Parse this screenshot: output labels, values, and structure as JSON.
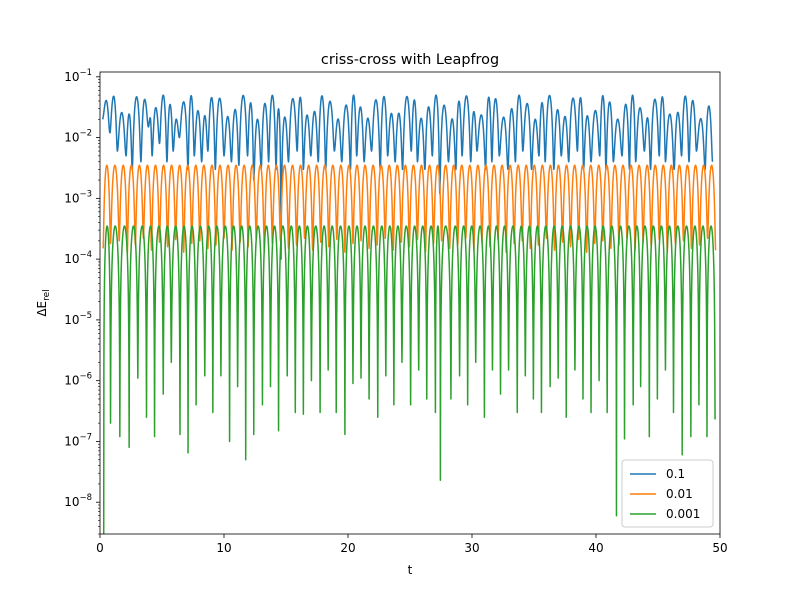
{
  "chart_data": {
    "type": "line",
    "title": "criss-cross with Leapfrog",
    "xlabel": "t",
    "ylabel": "ΔE",
    "ylabel_sub": "rel",
    "xlim": [
      0,
      50
    ],
    "ylim": [
      3e-09,
      0.12
    ],
    "yscale": "log",
    "grid": false,
    "legend_position": "lower-right",
    "x_ticks": [
      0,
      10,
      20,
      30,
      40,
      50
    ],
    "x_tick_labels": [
      "0",
      "10",
      "20",
      "30",
      "40",
      "50"
    ],
    "y_ticks": [
      1e-08,
      1e-07,
      1e-06,
      1e-05,
      0.0001,
      0.001,
      0.01,
      0.1
    ],
    "y_tick_mantissa": [
      "10",
      "10",
      "10",
      "10",
      "10",
      "10",
      "10",
      "10"
    ],
    "y_tick_exponents": [
      "−8",
      "−7",
      "−6",
      "−5",
      "−4",
      "−3",
      "−2",
      "−1"
    ],
    "series": [
      {
        "name": "0.1",
        "color": "#1f77b4",
        "envelope_range": [
          0.02,
          0.05
        ],
        "dip_times": [
          0.2,
          0.8,
          1.4,
          2.1,
          2.6,
          3.3,
          3.9,
          4.2,
          4.8,
          5.4,
          5.9,
          6.4,
          7.1,
          7.6,
          8.2,
          8.7,
          9.3,
          10.0,
          10.6,
          11.2,
          11.9,
          12.4,
          13.0,
          13.6,
          14.2,
          14.6,
          15.2,
          15.9,
          16.4,
          17.0,
          17.6,
          18.2,
          18.9,
          19.5,
          20.2,
          20.7,
          21.3,
          21.9,
          22.6,
          23.2,
          23.8,
          24.4,
          25.1,
          25.6,
          26.2,
          26.8,
          27.4,
          28.1,
          28.7,
          29.2,
          29.9,
          30.4,
          31.1,
          31.6,
          32.2,
          32.9,
          33.5,
          34.1,
          34.8,
          35.4,
          35.9,
          36.6,
          37.2,
          37.8,
          38.5,
          39.0,
          39.6,
          40.3,
          40.8,
          41.4,
          42.1,
          42.7,
          43.2,
          43.9,
          44.4,
          45.1,
          45.6,
          46.3,
          46.9,
          47.5,
          48.1,
          48.8,
          49.4
        ],
        "dip_values": [
          0.02,
          0.012,
          0.006,
          0.005,
          0.003,
          0.004,
          0.015,
          0.005,
          0.008,
          0.004,
          0.006,
          0.01,
          0.003,
          0.005,
          0.004,
          0.006,
          0.003,
          0.005,
          0.004,
          0.0035,
          0.005,
          0.002,
          0.003,
          0.004,
          0.003,
          0.0001,
          0.004,
          0.006,
          0.003,
          0.005,
          0.004,
          0.003,
          0.006,
          0.004,
          0.003,
          0.005,
          0.004,
          0.006,
          0.003,
          0.005,
          0.004,
          0.003,
          0.006,
          0.004,
          0.003,
          0.005,
          0.0012,
          0.004,
          0.003,
          0.005,
          0.004,
          0.006,
          0.003,
          0.004,
          0.005,
          0.003,
          0.004,
          0.006,
          0.003,
          0.005,
          0.004,
          0.003,
          0.005,
          0.004,
          0.006,
          0.003,
          0.004,
          0.005,
          0.003,
          0.004,
          0.005,
          0.003,
          0.004,
          0.006,
          0.003,
          0.005,
          0.004,
          0.003,
          0.005,
          0.004,
          0.006,
          0.003,
          0.004
        ]
      },
      {
        "name": "0.01",
        "color": "#ff7f0e",
        "peak": 0.0035,
        "dip_times": [
          0.25,
          0.85,
          1.55,
          2.2,
          2.85,
          3.5,
          4.15,
          4.8,
          5.45,
          6.1,
          6.75,
          7.4,
          8.05,
          8.7,
          9.35,
          10.0,
          10.65,
          11.3,
          11.95,
          12.6,
          13.25,
          13.9,
          14.55,
          15.2,
          15.85,
          16.5,
          17.15,
          17.8,
          18.45,
          19.1,
          19.75,
          20.4,
          21.05,
          21.7,
          22.35,
          23.0,
          23.65,
          24.3,
          24.95,
          25.6,
          26.25,
          26.9,
          27.55,
          28.2,
          28.85,
          29.5,
          30.15,
          30.8,
          31.45,
          32.1,
          32.75,
          33.4,
          34.05,
          34.7,
          35.35,
          36.0,
          36.65,
          37.3,
          37.95,
          38.6,
          39.25,
          39.9,
          40.55,
          41.2,
          41.85,
          42.5,
          43.15,
          43.8,
          44.45,
          45.1,
          45.75,
          46.4,
          47.05,
          47.7,
          48.35,
          49.0,
          49.65
        ],
        "dip_values": [
          0.00015,
          0.00018,
          0.0002,
          0.00012,
          0.00017,
          0.00022,
          0.00014,
          0.00019,
          0.00016,
          0.00021,
          0.00013,
          0.00018,
          0.0002,
          0.00015,
          0.00017,
          0.00022,
          0.00014,
          0.00019,
          0.00016,
          0.00021,
          0.00013,
          0.00018,
          0.0002,
          0.00015,
          0.00017,
          0.00022,
          0.00014,
          0.00019,
          0.00016,
          0.00021,
          0.00013,
          0.00018,
          0.0002,
          0.00015,
          0.00017,
          0.00022,
          0.00014,
          0.00019,
          0.00016,
          0.00021,
          0.00013,
          0.00018,
          0.0002,
          0.00015,
          0.00017,
          0.00022,
          0.00014,
          0.00019,
          0.00016,
          0.00021,
          0.00013,
          0.00018,
          0.0002,
          0.00015,
          0.00017,
          0.00022,
          0.00014,
          0.00019,
          0.00016,
          0.00021,
          0.00013,
          0.00018,
          0.0002,
          0.00015,
          0.00017,
          0.00022,
          0.00014,
          0.00019,
          0.00016,
          0.00021,
          0.00013,
          0.00018,
          0.0002,
          0.00015,
          0.00017,
          0.00022,
          0.00014
        ]
      },
      {
        "name": "0.001",
        "color": "#2ca02c",
        "peak": 0.00035,
        "dip_times": [
          0.3,
          0.85,
          1.6,
          2.35,
          3.05,
          3.75,
          4.4,
          5.1,
          5.75,
          6.45,
          7.1,
          7.75,
          8.45,
          9.1,
          9.75,
          10.45,
          11.1,
          11.75,
          12.4,
          13.1,
          13.75,
          14.4,
          15.1,
          15.75,
          16.4,
          17.05,
          17.75,
          18.4,
          19.05,
          19.75,
          20.4,
          21.05,
          21.7,
          22.4,
          23.05,
          23.7,
          24.35,
          25.05,
          25.7,
          26.35,
          27.05,
          27.45,
          28.3,
          29.0,
          29.65,
          30.3,
          31.0,
          31.65,
          32.3,
          32.95,
          33.65,
          34.3,
          34.95,
          35.6,
          36.3,
          36.95,
          37.6,
          38.3,
          38.95,
          39.6,
          40.25,
          40.9,
          41.65,
          42.3,
          43.0,
          43.6,
          44.3,
          44.95,
          45.6,
          46.25,
          46.95,
          47.65,
          48.3,
          48.95,
          49.6
        ],
        "dip_values": [
          3e-09,
          2e-07,
          1.2e-07,
          8e-08,
          1.1e-06,
          2.5e-07,
          1.2e-07,
          6e-07,
          2e-06,
          1.3e-07,
          6.5e-08,
          4e-07,
          1.2e-06,
          3e-07,
          1.2e-06,
          1e-07,
          8e-07,
          5e-08,
          1.3e-07,
          4e-07,
          8e-07,
          1.5e-07,
          1.2e-06,
          3e-07,
          2.8e-07,
          1e-06,
          3e-07,
          1.5e-06,
          3e-07,
          1.3e-07,
          9e-07,
          1.1e-06,
          5e-07,
          2.5e-07,
          1.2e-06,
          4e-07,
          2e-06,
          4e-07,
          1.5e-06,
          5e-07,
          3e-07,
          2.3e-08,
          5e-07,
          1.2e-06,
          4e-07,
          2e-06,
          2.5e-07,
          1.5e-06,
          6e-07,
          1.5e-06,
          3e-07,
          1.2e-06,
          5e-07,
          3e-07,
          8e-07,
          1.1e-06,
          2.5e-07,
          1.5e-06,
          5e-07,
          3e-07,
          1e-06,
          3e-07,
          6e-09,
          1.1e-07,
          4e-07,
          8e-07,
          1.2e-07,
          5e-07,
          1.5e-06,
          3e-07,
          6e-08,
          1.2e-07,
          4e-07,
          1.2e-07,
          2.3e-07
        ]
      }
    ]
  }
}
